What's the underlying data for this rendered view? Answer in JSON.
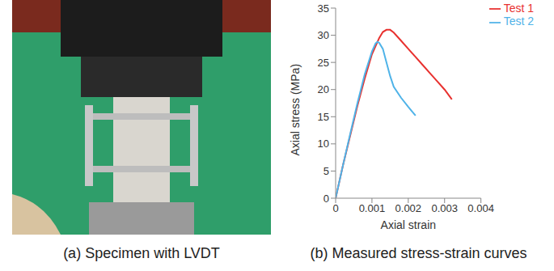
{
  "captions": [
    "(a) Specimen with LVDT",
    "(b) Measured stress-strain curves"
  ],
  "chart_data": {
    "type": "line",
    "xlabel": "Axial strain",
    "ylabel": "Axial stress (MPa)",
    "xlim": [
      0,
      0.004
    ],
    "xticks": [
      0,
      0.001,
      0.002,
      0.003,
      0.004
    ],
    "ylim": [
      0,
      35
    ],
    "yticks": [
      0,
      5,
      10,
      15,
      20,
      25,
      30,
      35
    ],
    "grid": false,
    "legend": "upper right",
    "series": [
      {
        "name": "Test 1",
        "color": "#e8312f",
        "x": [
          0,
          0.0002,
          0.0004,
          0.0006,
          0.0008,
          0.001,
          0.0012,
          0.0013,
          0.0014,
          0.0015,
          0.0016,
          0.0018,
          0.002,
          0.0022,
          0.0024,
          0.0026,
          0.0028,
          0.003,
          0.0032
        ],
        "values": [
          0,
          6,
          11.5,
          17,
          22,
          26.5,
          29.5,
          30.6,
          31,
          31,
          30.5,
          29,
          27.5,
          26,
          24.5,
          23,
          21.5,
          20,
          18.2
        ]
      },
      {
        "name": "Test 2",
        "color": "#4fb3e8",
        "x": [
          0,
          0.0002,
          0.0004,
          0.0006,
          0.0008,
          0.001,
          0.0011,
          0.00115,
          0.0012,
          0.0013,
          0.0014,
          0.0015,
          0.0016,
          0.0018,
          0.002,
          0.0022
        ],
        "values": [
          0,
          6,
          11.8,
          17.5,
          22.8,
          27,
          28.5,
          28.8,
          28.6,
          27.5,
          25,
          22.5,
          20.5,
          18.5,
          16.8,
          15.2
        ]
      }
    ]
  }
}
